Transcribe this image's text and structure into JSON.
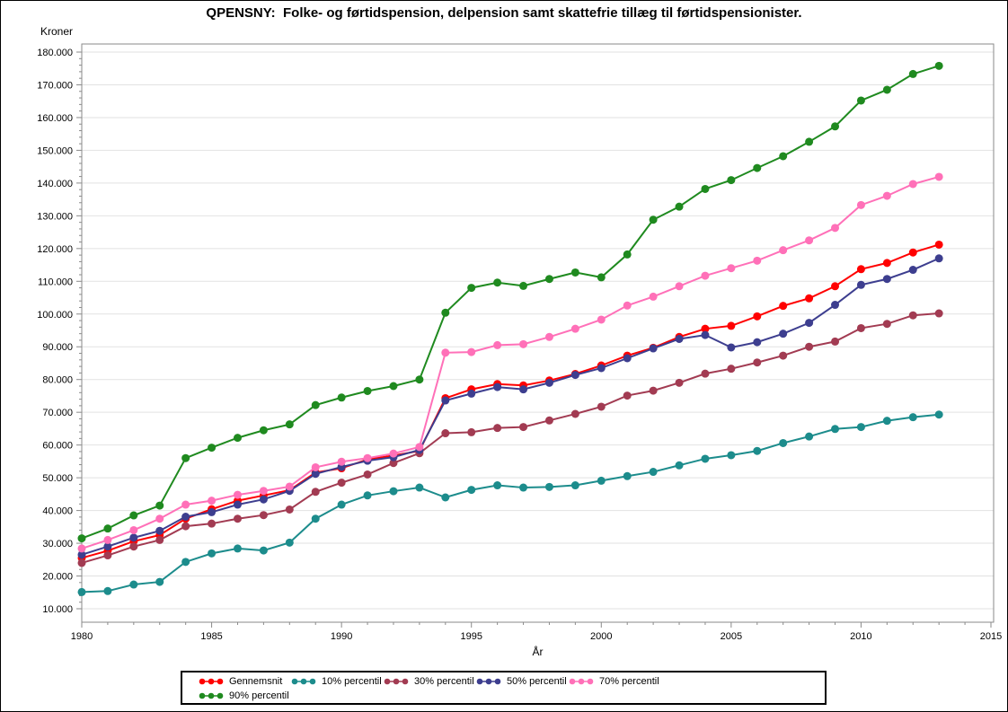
{
  "page": {
    "title": "QPENSNY:  Folke- og førtidspension, delpension samt skattefrie tillæg til førtidspensionister."
  },
  "colors": {
    "gridline": "#e2e2e2",
    "frame": "#8a8a8a",
    "tick": "#8a8a8a",
    "text": "#000000",
    "background": "#ffffff"
  },
  "chart_data": {
    "type": "line",
    "title": "QPENSNY:  Folke- og førtidspension, delpension samt skattefrie tillæg til førtidspensionister.",
    "xlabel": "År",
    "ylabel": "Kroner",
    "xlim": [
      1980,
      2015
    ],
    "ylim": [
      10000,
      180000
    ],
    "x_major_tick_step": 5,
    "x_minor_tick_step": 1,
    "y_major_tick_step": 10000,
    "y_minor_tick_step": 2000,
    "grid": "horizontal-major",
    "legend_position": "bottom",
    "marker": "filled-circle",
    "x": [
      1980,
      1981,
      1982,
      1983,
      1984,
      1985,
      1986,
      1987,
      1988,
      1989,
      1990,
      1991,
      1992,
      1993,
      1994,
      1995,
      1996,
      1997,
      1998,
      1999,
      2000,
      2001,
      2002,
      2003,
      2004,
      2005,
      2006,
      2007,
      2008,
      2009,
      2010,
      2011,
      2012,
      2013
    ],
    "series": [
      {
        "name": "Gennemsnit",
        "color": "#ff0000",
        "values": [
          25500,
          27700,
          30600,
          32500,
          37500,
          40400,
          43000,
          44600,
          46200,
          51600,
          52900,
          55600,
          56800,
          58200,
          74300,
          77000,
          78600,
          78200,
          79700,
          81700,
          84300,
          87300,
          89700,
          93000,
          95500,
          96400,
          99300,
          102500,
          104800,
          108500,
          113700,
          115600,
          118800,
          121200
        ]
      },
      {
        "name": "10% percentil",
        "color": "#1c8c8c",
        "values": [
          15100,
          15400,
          17400,
          18200,
          24300,
          26900,
          28400,
          27800,
          30200,
          37500,
          41800,
          44600,
          45900,
          47000,
          44000,
          46300,
          47700,
          47000,
          47200,
          47700,
          49100,
          50500,
          51800,
          53800,
          55800,
          56900,
          58200,
          60600,
          62600,
          64900,
          65500,
          67400,
          68500,
          69300
        ]
      },
      {
        "name": "30% percentil",
        "color": "#a23b52",
        "values": [
          24000,
          26300,
          29000,
          31000,
          35200,
          36000,
          37500,
          38600,
          40300,
          45700,
          48500,
          51000,
          54500,
          57500,
          63600,
          63900,
          65200,
          65500,
          67500,
          69500,
          71700,
          75100,
          76600,
          79000,
          81800,
          83300,
          85200,
          87300,
          90000,
          91600,
          95700,
          97000,
          99600,
          100200
        ]
      },
      {
        "name": "50% percentil",
        "color": "#3d3e8f",
        "values": [
          26500,
          29000,
          31700,
          33800,
          38100,
          39500,
          41800,
          43400,
          46000,
          51200,
          53300,
          55200,
          56300,
          58500,
          73600,
          75700,
          77700,
          77000,
          79000,
          81400,
          83500,
          86500,
          89500,
          92400,
          93600,
          89800,
          91400,
          94000,
          97300,
          102800,
          108900,
          110700,
          113500,
          117000
        ]
      },
      {
        "name": "70% percentil",
        "color": "#ff70b8",
        "values": [
          28400,
          31000,
          34000,
          37500,
          41800,
          43000,
          44800,
          46000,
          47300,
          53200,
          54900,
          56000,
          57400,
          59400,
          88200,
          88400,
          90500,
          90800,
          93000,
          95500,
          98300,
          102600,
          105300,
          108500,
          111700,
          114000,
          116300,
          119500,
          122500,
          126300,
          133300,
          136100,
          139700,
          141900
        ]
      },
      {
        "name": "90% percentil",
        "color": "#1f8a1f",
        "values": [
          31500,
          34500,
          38500,
          41500,
          56000,
          59200,
          62200,
          64500,
          66300,
          72200,
          74500,
          76500,
          78000,
          80000,
          100400,
          108000,
          109600,
          108600,
          110700,
          112700,
          111200,
          118200,
          128800,
          132800,
          138200,
          140900,
          144600,
          148200,
          152600,
          157300,
          165200,
          168500,
          173300,
          175800
        ]
      }
    ]
  }
}
